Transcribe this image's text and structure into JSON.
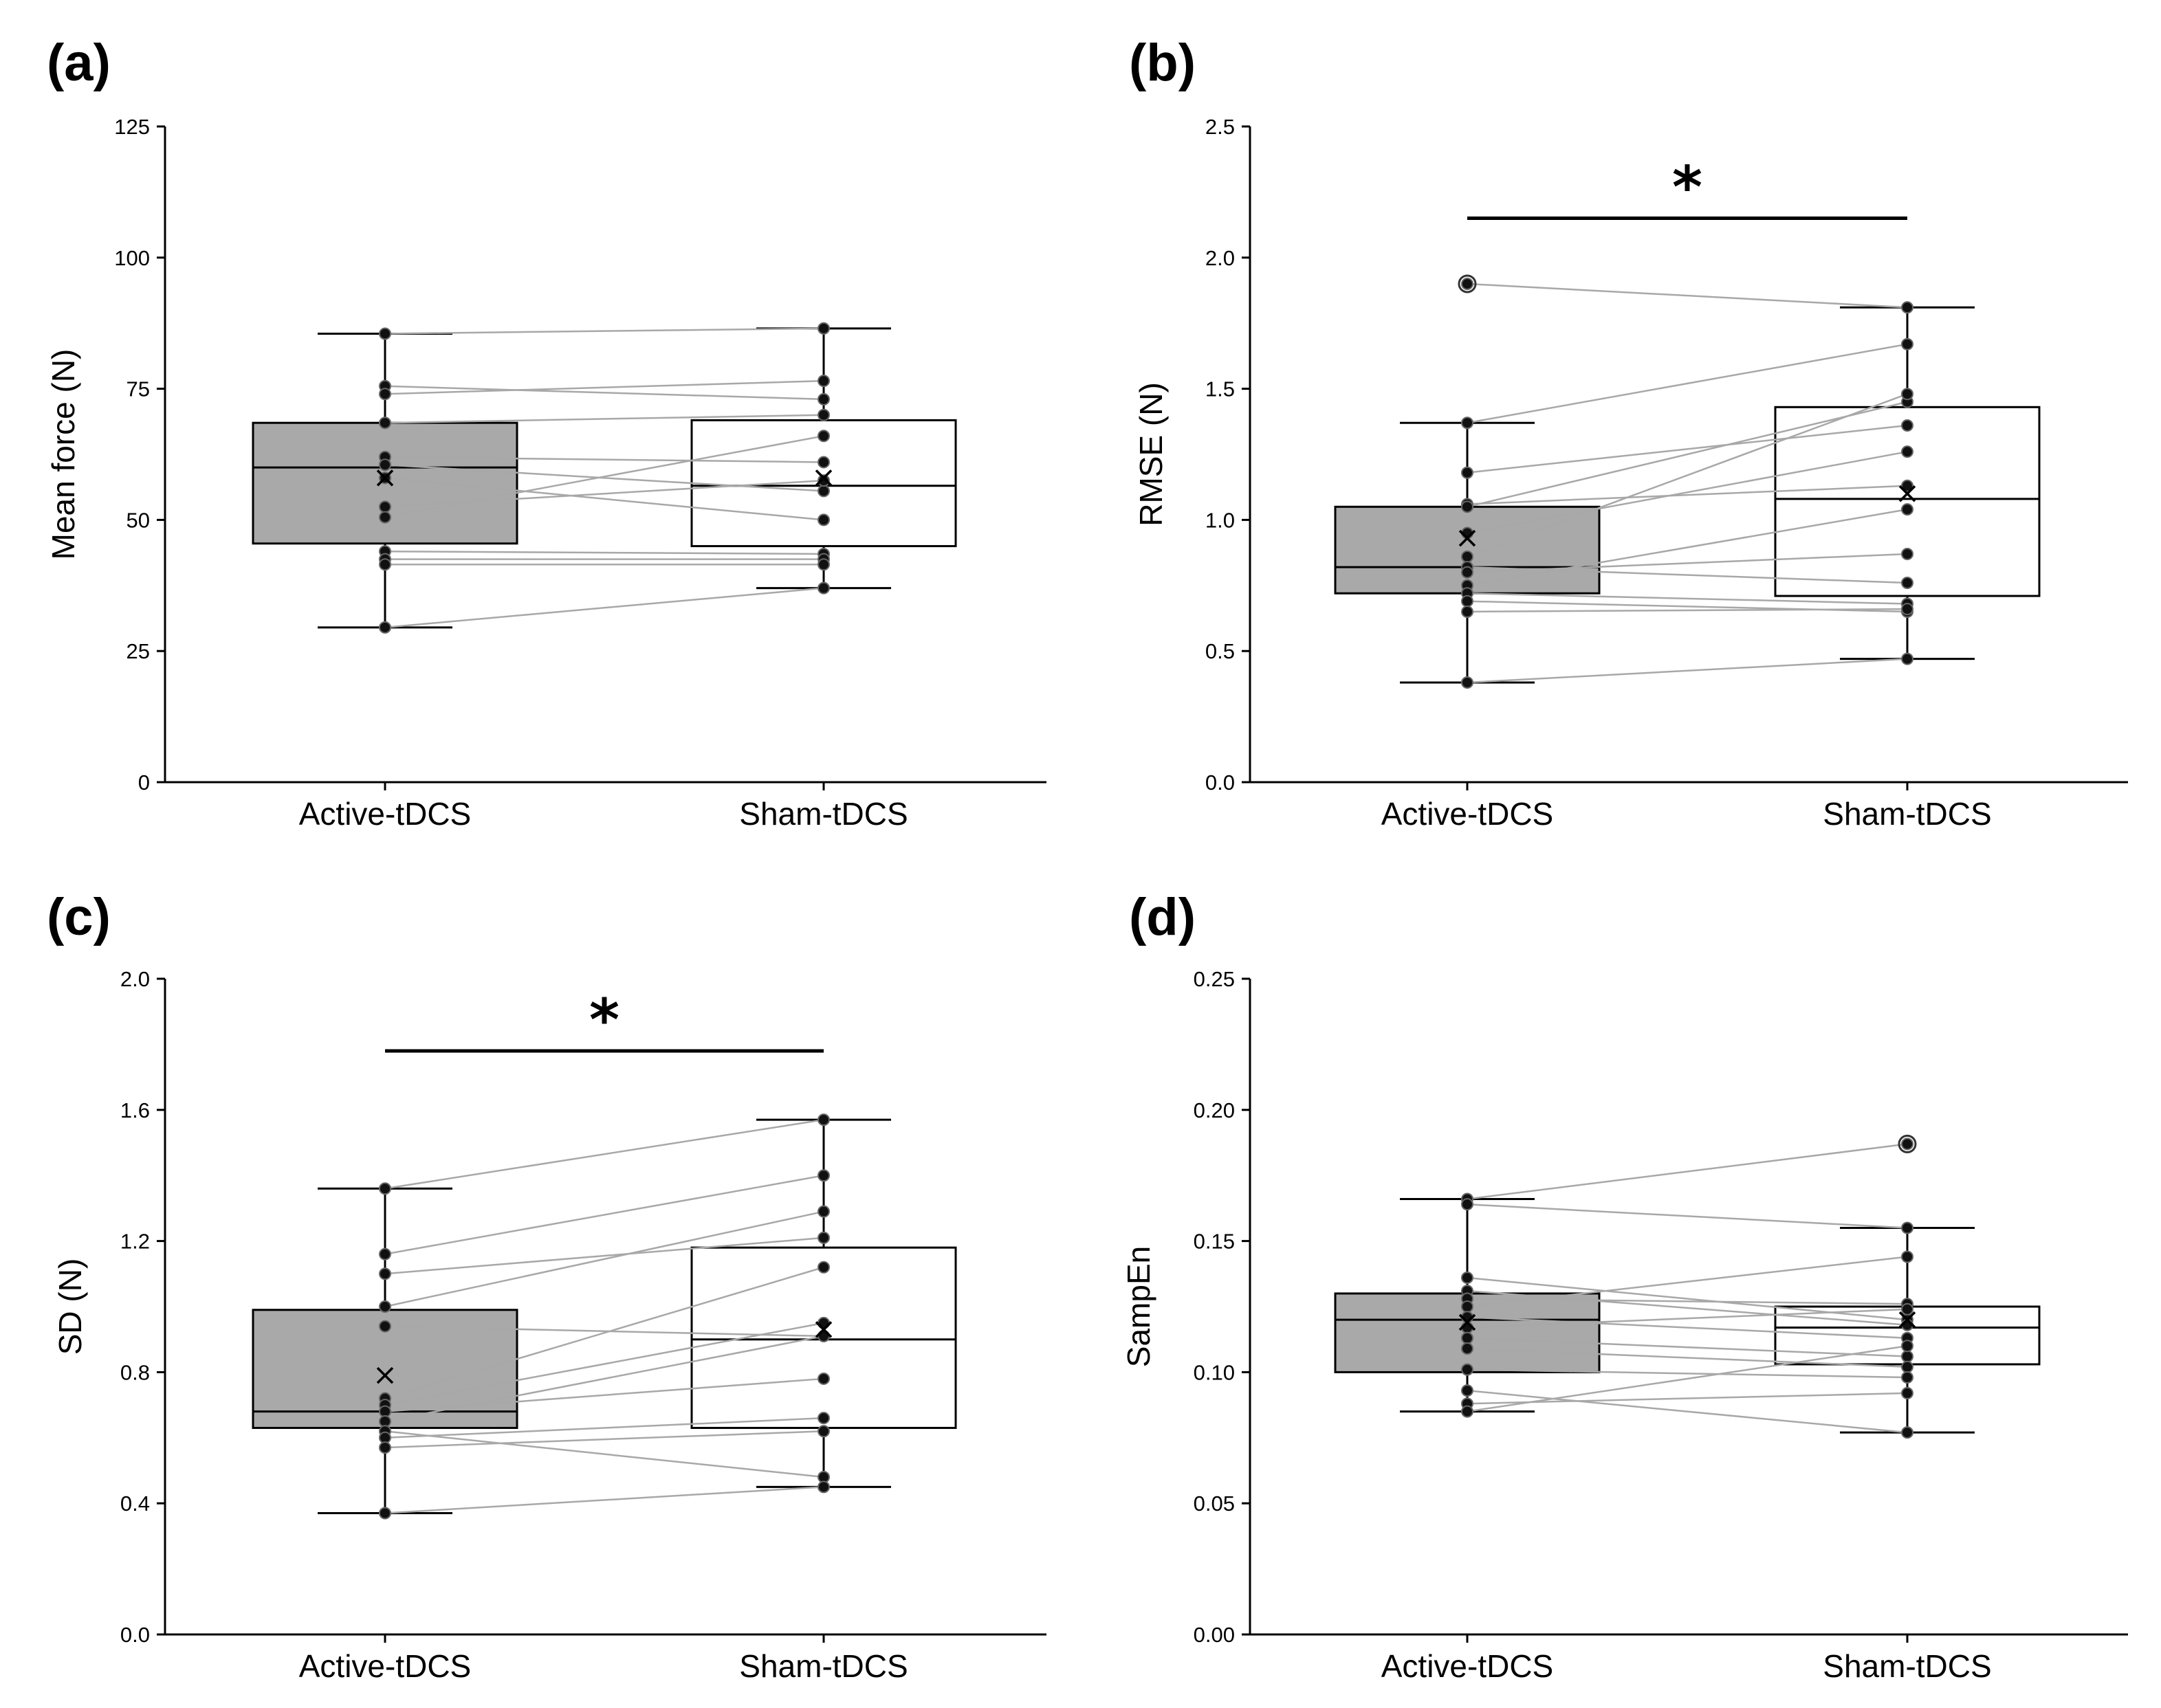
{
  "chart_data": [
    {
      "panel": "(a)",
      "type": "box",
      "title": "",
      "ylabel": "Mean force (N)",
      "categories": [
        "Active-tDCS",
        "Sham-tDCS"
      ],
      "ylim": [
        0,
        125
      ],
      "yticks": [
        0,
        25,
        50,
        75,
        100,
        125
      ],
      "ytick_labels": [
        "0",
        "25",
        "50",
        "75",
        "100",
        "125"
      ],
      "fills": [
        "#a9a9a9",
        "#ffffff"
      ],
      "boxes": [
        {
          "q1": 45.5,
          "median": 60,
          "q3": 68.5,
          "whisker_low": 29.5,
          "whisker_high": 85.5,
          "mean": 58,
          "outliers": []
        },
        {
          "q1": 45,
          "median": 56.5,
          "q3": 69,
          "whisker_low": 37,
          "whisker_high": 86.5,
          "mean": 58,
          "outliers": []
        }
      ],
      "pairs": [
        [
          85.5,
          86.5
        ],
        [
          75.5,
          73
        ],
        [
          74,
          76.5
        ],
        [
          68.5,
          70
        ],
        [
          62,
          61
        ],
        [
          60.5,
          55.5
        ],
        [
          58,
          50
        ],
        [
          52.5,
          57.5
        ],
        [
          50.5,
          66
        ],
        [
          44,
          43.5
        ],
        [
          42.5,
          42.5
        ],
        [
          41.5,
          41.5
        ],
        [
          29.5,
          37
        ]
      ],
      "significance": null
    },
    {
      "panel": "(b)",
      "type": "box",
      "title": "",
      "ylabel": "RMSE (N)",
      "categories": [
        "Active-tDCS",
        "Sham-tDCS"
      ],
      "ylim": [
        0,
        2.5
      ],
      "yticks": [
        0,
        0.5,
        1.0,
        1.5,
        2.0,
        2.5
      ],
      "ytick_labels": [
        "0.0",
        "0.5",
        "1.0",
        "1.5",
        "2.0",
        "2.5"
      ],
      "fills": [
        "#a9a9a9",
        "#ffffff"
      ],
      "boxes": [
        {
          "q1": 0.72,
          "median": 0.82,
          "q3": 1.05,
          "whisker_low": 0.38,
          "whisker_high": 1.37,
          "mean": 0.93,
          "outliers": [
            1.9
          ]
        },
        {
          "q1": 0.71,
          "median": 1.08,
          "q3": 1.43,
          "whisker_low": 0.47,
          "whisker_high": 1.81,
          "mean": 1.1,
          "outliers": []
        }
      ],
      "pairs": [
        [
          1.9,
          1.81
        ],
        [
          1.37,
          1.67
        ],
        [
          1.18,
          1.36
        ],
        [
          1.06,
          1.13
        ],
        [
          1.05,
          1.45
        ],
        [
          0.95,
          1.26
        ],
        [
          0.86,
          1.48
        ],
        [
          0.82,
          0.76
        ],
        [
          0.8,
          0.87
        ],
        [
          0.75,
          1.04
        ],
        [
          0.72,
          0.68
        ],
        [
          0.69,
          0.65
        ],
        [
          0.65,
          0.66
        ],
        [
          0.38,
          0.47
        ]
      ],
      "significance": {
        "from": "Active-tDCS",
        "to": "Sham-tDCS",
        "y": 2.15,
        "symbol": "*"
      }
    },
    {
      "panel": "(c)",
      "type": "box",
      "title": "",
      "ylabel": "SD (N)",
      "categories": [
        "Active-tDCS",
        "Sham-tDCS"
      ],
      "ylim": [
        0,
        2.0
      ],
      "yticks": [
        0,
        0.4,
        0.8,
        1.2,
        1.6,
        2.0
      ],
      "ytick_labels": [
        "0.0",
        "0.4",
        "0.8",
        "1.2",
        "1.6",
        "2.0"
      ],
      "fills": [
        "#a9a9a9",
        "#ffffff"
      ],
      "boxes": [
        {
          "q1": 0.63,
          "median": 0.68,
          "q3": 0.99,
          "whisker_low": 0.37,
          "whisker_high": 1.36,
          "mean": 0.79,
          "outliers": []
        },
        {
          "q1": 0.63,
          "median": 0.9,
          "q3": 1.18,
          "whisker_low": 0.45,
          "whisker_high": 1.57,
          "mean": 0.93,
          "outliers": []
        }
      ],
      "pairs": [
        [
          1.36,
          1.57
        ],
        [
          1.16,
          1.4
        ],
        [
          1.1,
          1.21
        ],
        [
          1.0,
          1.29
        ],
        [
          0.94,
          0.91
        ],
        [
          0.72,
          1.12
        ],
        [
          0.7,
          0.95
        ],
        [
          0.68,
          0.78
        ],
        [
          0.65,
          0.91
        ],
        [
          0.62,
          0.48
        ],
        [
          0.6,
          0.66
        ],
        [
          0.57,
          0.62
        ],
        [
          0.37,
          0.45
        ]
      ],
      "significance": {
        "from": "Active-tDCS",
        "to": "Sham-tDCS",
        "y": 1.78,
        "symbol": "*"
      }
    },
    {
      "panel": "(d)",
      "type": "box",
      "title": "",
      "ylabel": "SampEn",
      "categories": [
        "Active-tDCS",
        "Sham-tDCS"
      ],
      "ylim": [
        0,
        0.25
      ],
      "yticks": [
        0,
        0.05,
        0.1,
        0.15,
        0.2,
        0.25
      ],
      "ytick_labels": [
        "0.00",
        "0.05",
        "0.10",
        "0.15",
        "0.20",
        "0.25"
      ],
      "fills": [
        "#a9a9a9",
        "#ffffff"
      ],
      "boxes": [
        {
          "q1": 0.1,
          "median": 0.12,
          "q3": 0.13,
          "whisker_low": 0.085,
          "whisker_high": 0.166,
          "mean": 0.119,
          "outliers": []
        },
        {
          "q1": 0.103,
          "median": 0.117,
          "q3": 0.125,
          "whisker_low": 0.077,
          "whisker_high": 0.155,
          "mean": 0.12,
          "outliers": [
            0.187
          ]
        }
      ],
      "pairs": [
        [
          0.166,
          0.187
        ],
        [
          0.164,
          0.155
        ],
        [
          0.136,
          0.12
        ],
        [
          0.131,
          0.118
        ],
        [
          0.128,
          0.126
        ],
        [
          0.125,
          0.144
        ],
        [
          0.121,
          0.113
        ],
        [
          0.117,
          0.124
        ],
        [
          0.113,
          0.106
        ],
        [
          0.109,
          0.102
        ],
        [
          0.101,
          0.098
        ],
        [
          0.093,
          0.077
        ],
        [
          0.088,
          0.092
        ],
        [
          0.085,
          0.11
        ]
      ],
      "significance": null
    }
  ]
}
